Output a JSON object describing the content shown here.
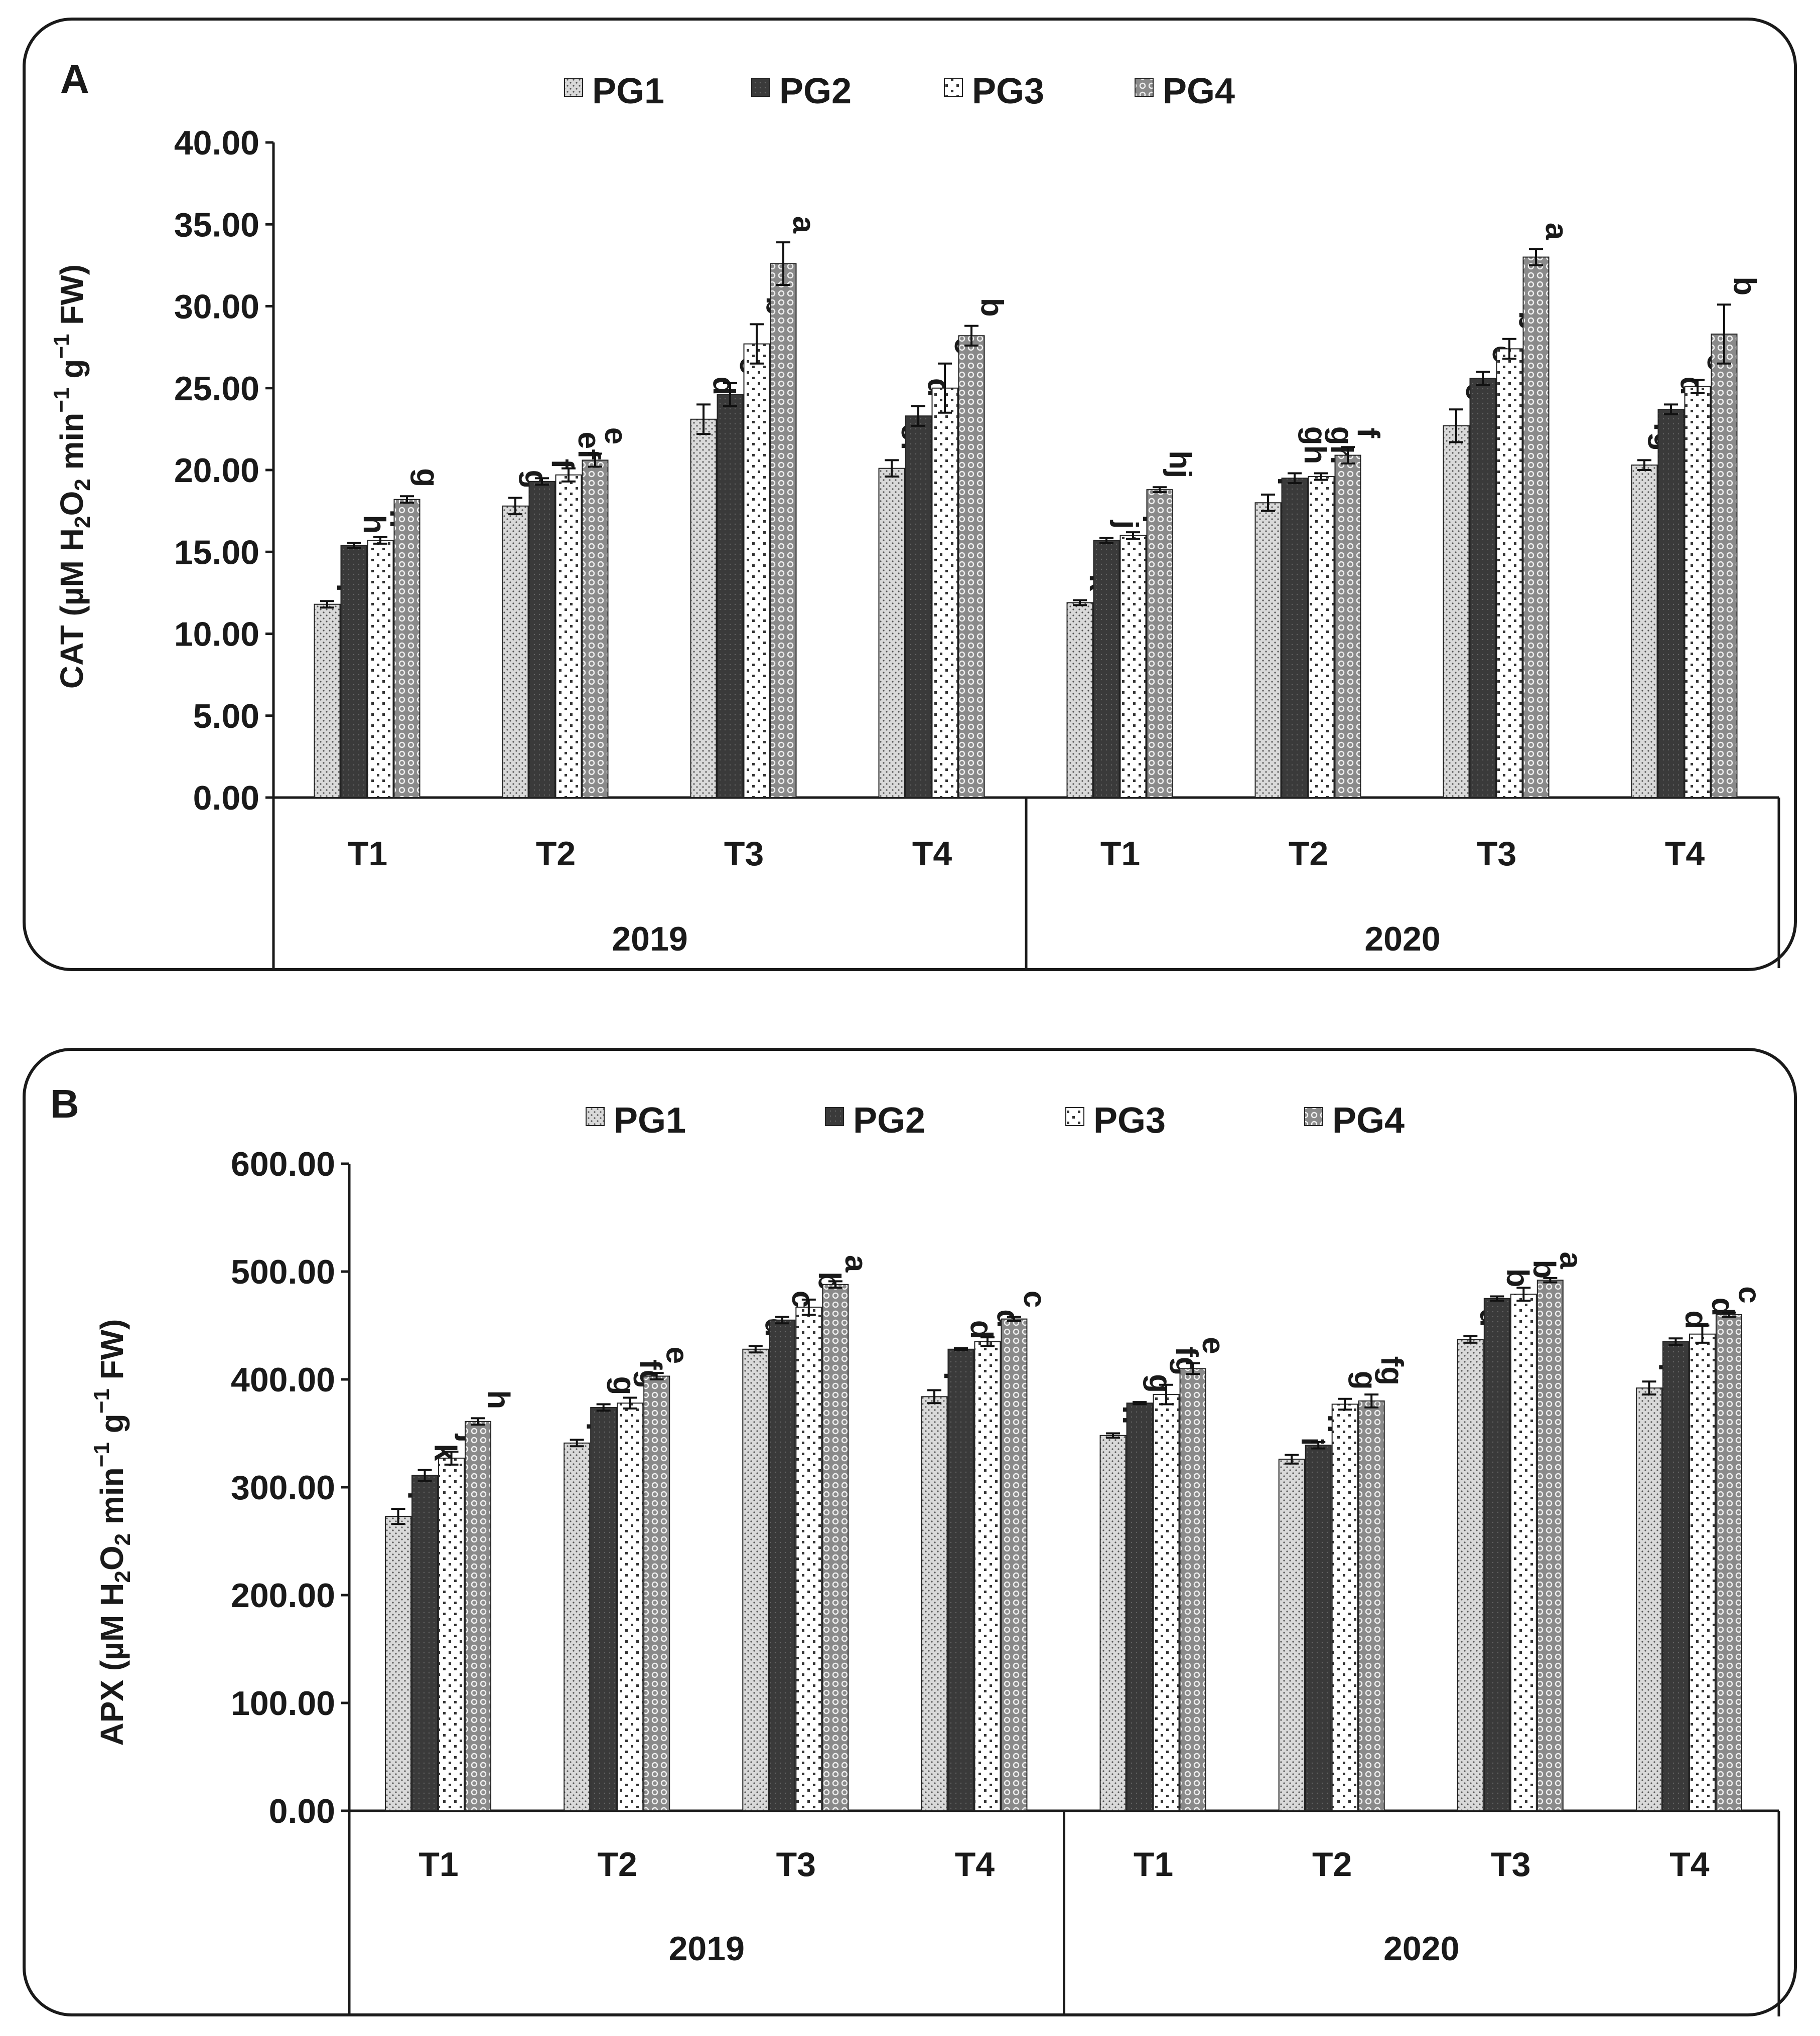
{
  "figure": {
    "legend": [
      "PG1",
      "PG2",
      "PG3",
      "PG4"
    ],
    "series_colors": [
      "#cfcfcf",
      "#3a3a3a",
      "#f2f2f2",
      "#b5b5b5"
    ]
  },
  "chart_data": [
    {
      "panel_label": "A",
      "type": "bar",
      "ylabel": "CAT (µM H2O2 min-1 g-1 FW)",
      "ylabel_parts": [
        "CAT (µM H",
        "2",
        "O",
        "2",
        " min",
        "−1",
        " g",
        "−1",
        " FW)"
      ],
      "ylim": [
        0,
        40
      ],
      "yticks": [
        "0.00",
        "5.00",
        "10.00",
        "15.00",
        "20.00",
        "25.00",
        "30.00",
        "35.00",
        "40.00"
      ],
      "groups": [
        "2019",
        "2020"
      ],
      "categories": [
        "T1",
        "T2",
        "T3",
        "T4",
        "T1",
        "T2",
        "T3",
        "T4"
      ],
      "series": [
        {
          "name": "PG1",
          "values": [
            11.8,
            17.8,
            23.1,
            20.1,
            11.9,
            18.0,
            22.7,
            20.3
          ],
          "errors": [
            0.2,
            0.5,
            0.9,
            0.5,
            0.15,
            0.5,
            1.0,
            0.3
          ],
          "letters": [
            "i",
            "g",
            "d",
            "ef",
            "k",
            "i",
            "e",
            "fg"
          ]
        },
        {
          "name": "PG2",
          "values": [
            15.4,
            19.3,
            24.6,
            23.3,
            15.7,
            19.5,
            25.6,
            23.7
          ],
          "errors": [
            0.15,
            0.2,
            0.7,
            0.6,
            0.15,
            0.3,
            0.4,
            0.3
          ],
          "letters": [
            "h",
            "f",
            "c",
            "d",
            "j",
            "gh",
            "c",
            "d"
          ]
        },
        {
          "name": "PG3",
          "values": [
            15.7,
            19.7,
            27.7,
            25.0,
            16.0,
            19.6,
            27.4,
            25.1
          ],
          "errors": [
            0.2,
            0.4,
            1.2,
            1.5,
            0.2,
            0.2,
            0.6,
            0.4
          ],
          "letters": [
            "h",
            "ef",
            "b",
            "c",
            "i",
            "gh",
            "b",
            "c"
          ]
        },
        {
          "name": "PG4",
          "values": [
            18.2,
            20.6,
            32.6,
            28.2,
            18.8,
            20.9,
            33.0,
            28.3
          ],
          "errors": [
            0.2,
            0.4,
            1.3,
            0.6,
            0.15,
            0.5,
            0.5,
            1.8
          ],
          "letters": [
            "g",
            "e",
            "a",
            "b",
            "hj",
            "f",
            "a",
            "b"
          ]
        }
      ]
    },
    {
      "panel_label": "B",
      "type": "bar",
      "ylabel": "APX (µM H2O2 min-1 g-1 FW)",
      "ylabel_parts": [
        "APX (µM H",
        "2",
        "O",
        "2",
        " min",
        "−1",
        " g",
        "−1",
        " FW)"
      ],
      "ylim": [
        0,
        600
      ],
      "yticks": [
        "0.00",
        "100.00",
        "200.00",
        "300.00",
        "400.00",
        "500.00",
        "600.00"
      ],
      "groups": [
        "2019",
        "2020"
      ],
      "categories": [
        "T1",
        "T2",
        "T3",
        "T4",
        "T1",
        "T2",
        "T3",
        "T4"
      ],
      "series": [
        {
          "name": "PG1",
          "values": [
            273,
            341,
            428,
            384,
            348,
            326,
            437,
            392
          ],
          "errors": [
            7,
            3,
            3,
            6,
            2,
            4,
            3,
            6
          ],
          "letters": [
            "l",
            "i",
            "d",
            "f",
            "h",
            "i",
            "d",
            "f"
          ]
        },
        {
          "name": "PG2",
          "values": [
            311,
            374,
            455,
            428,
            378,
            339,
            475,
            435
          ],
          "errors": [
            5,
            3,
            3,
            1,
            1,
            3,
            2,
            3
          ],
          "letters": [
            "k",
            "g",
            "c",
            "d",
            "g",
            "h",
            "b",
            "d"
          ]
        },
        {
          "name": "PG3",
          "values": [
            327,
            378,
            467,
            435,
            386,
            377,
            479,
            442
          ],
          "errors": [
            6,
            5,
            7,
            4,
            9,
            5,
            6,
            8
          ],
          "letters": [
            "j",
            "fg",
            "b",
            "d",
            "fg",
            "g",
            "b",
            "d"
          ]
        },
        {
          "name": "PG4",
          "values": [
            361,
            403,
            488,
            456,
            410,
            380,
            492,
            460
          ],
          "errors": [
            3,
            3,
            3,
            2,
            5,
            6,
            2,
            2
          ],
          "letters": [
            "h",
            "e",
            "a",
            "c",
            "e",
            "fg",
            "a",
            "c"
          ]
        }
      ]
    }
  ]
}
